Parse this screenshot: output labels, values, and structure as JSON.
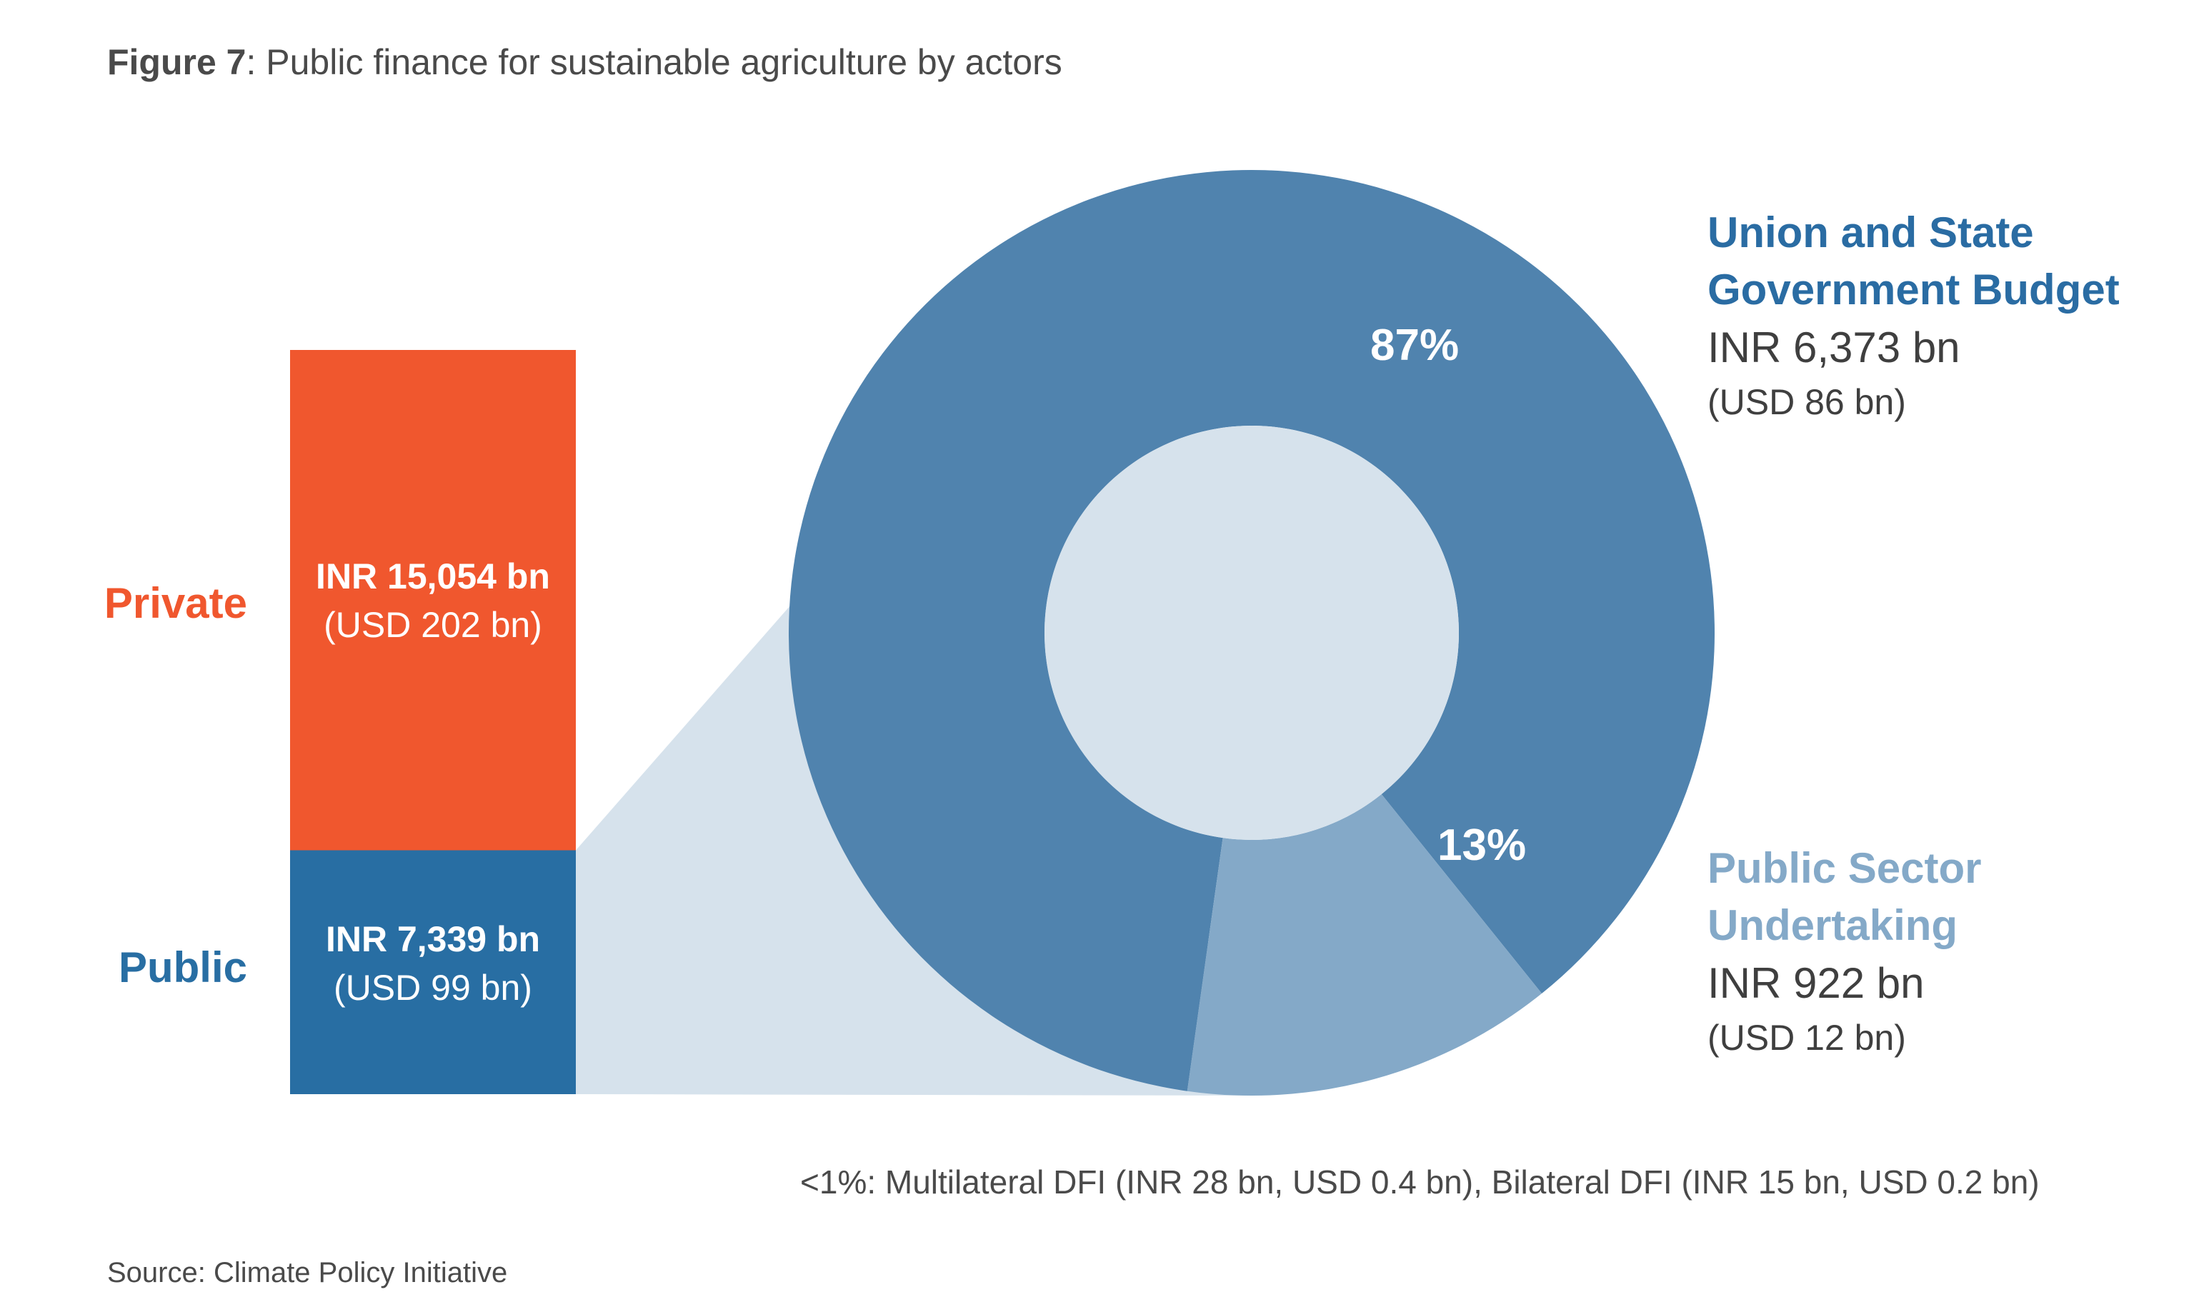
{
  "title": {
    "prefix": "Figure 7",
    "text": ": Public finance for sustainable agriculture by actors"
  },
  "colors": {
    "private": "#f0572e",
    "public": "#286ea3",
    "union": "#5083ae",
    "psu": "#84a9c8",
    "wedge": "#d6e2ec",
    "hole": "#d6e2ec"
  },
  "chart_data": [
    {
      "type": "bar",
      "stacked": true,
      "categories": [
        "Public",
        "Private"
      ],
      "values_inr_bn": [
        7339,
        15054
      ],
      "values_usd_bn": [
        99,
        202
      ],
      "labels": [
        {
          "name": "Public",
          "inr": "INR 7,339 bn",
          "usd": "(USD 99 bn)"
        },
        {
          "name": "Private",
          "inr": "INR 15,054 bn",
          "usd": "(USD 202 bn)"
        }
      ]
    },
    {
      "type": "pie",
      "donut": true,
      "slices": [
        {
          "name": "Union and State Government Budget",
          "name_lines": [
            "Union and State",
            "Government Budget"
          ],
          "percent": 87,
          "percent_label": "87%",
          "inr_bn": 6373,
          "inr": "INR 6,373 bn",
          "usd": "(USD 86 bn)"
        },
        {
          "name": "Public Sector Undertaking",
          "name_lines": [
            "Public Sector",
            "Undertaking"
          ],
          "percent": 13,
          "percent_label": "13%",
          "inr_bn": 922,
          "inr": "INR 922 bn",
          "usd": "(USD 12 bn)"
        }
      ]
    }
  ],
  "note": "<1%: Multilateral DFI (INR 28 bn, USD 0.4 bn), Bilateral DFI (INR 15 bn, USD 0.2 bn)",
  "source": "Source: Climate Policy Initiative"
}
